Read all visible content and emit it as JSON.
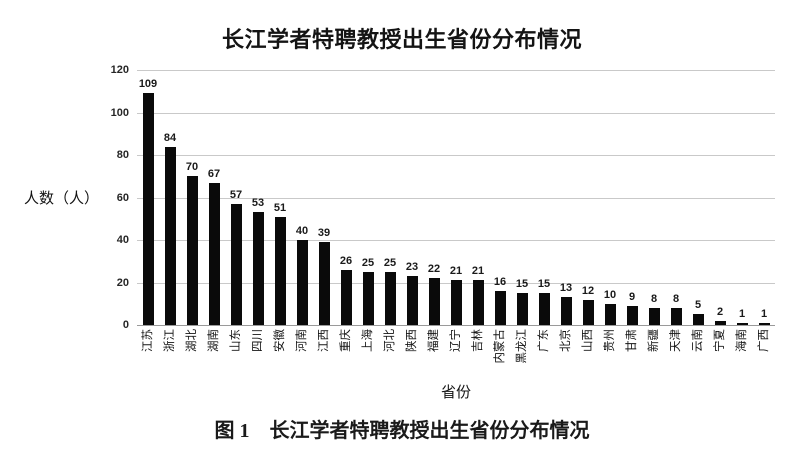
{
  "title": "长江学者特聘教授出生省份分布情况",
  "caption": "图 1　长江学者特聘教授出生省份分布情况",
  "chart_data": {
    "type": "bar",
    "title": "长江学者特聘教授出生省份分布情况",
    "xlabel": "省份",
    "ylabel": "人数（人）",
    "ylim": [
      0,
      120
    ],
    "yticks": [
      0,
      20,
      40,
      60,
      80,
      100,
      120
    ],
    "grid": true,
    "legend": "none",
    "value_labels": true,
    "x_label_rotation_deg": -90,
    "bar_color": "#0a0a0a",
    "gridline_color": "#c9c9c9",
    "categories": [
      "江苏",
      "浙江",
      "湖北",
      "湖南",
      "山东",
      "四川",
      "安徽",
      "河南",
      "江西",
      "重庆",
      "上海",
      "河北",
      "陕西",
      "福建",
      "辽宁",
      "吉林",
      "内蒙古",
      "黑龙江",
      "广东",
      "北京",
      "山西",
      "贵州",
      "甘肃",
      "新疆",
      "天津",
      "云南",
      "宁夏",
      "海南",
      "广西"
    ],
    "values": [
      109,
      84,
      70,
      67,
      57,
      53,
      51,
      40,
      39,
      26,
      25,
      25,
      23,
      22,
      21,
      21,
      16,
      15,
      15,
      13,
      12,
      10,
      9,
      8,
      8,
      5,
      2,
      1,
      1
    ]
  }
}
